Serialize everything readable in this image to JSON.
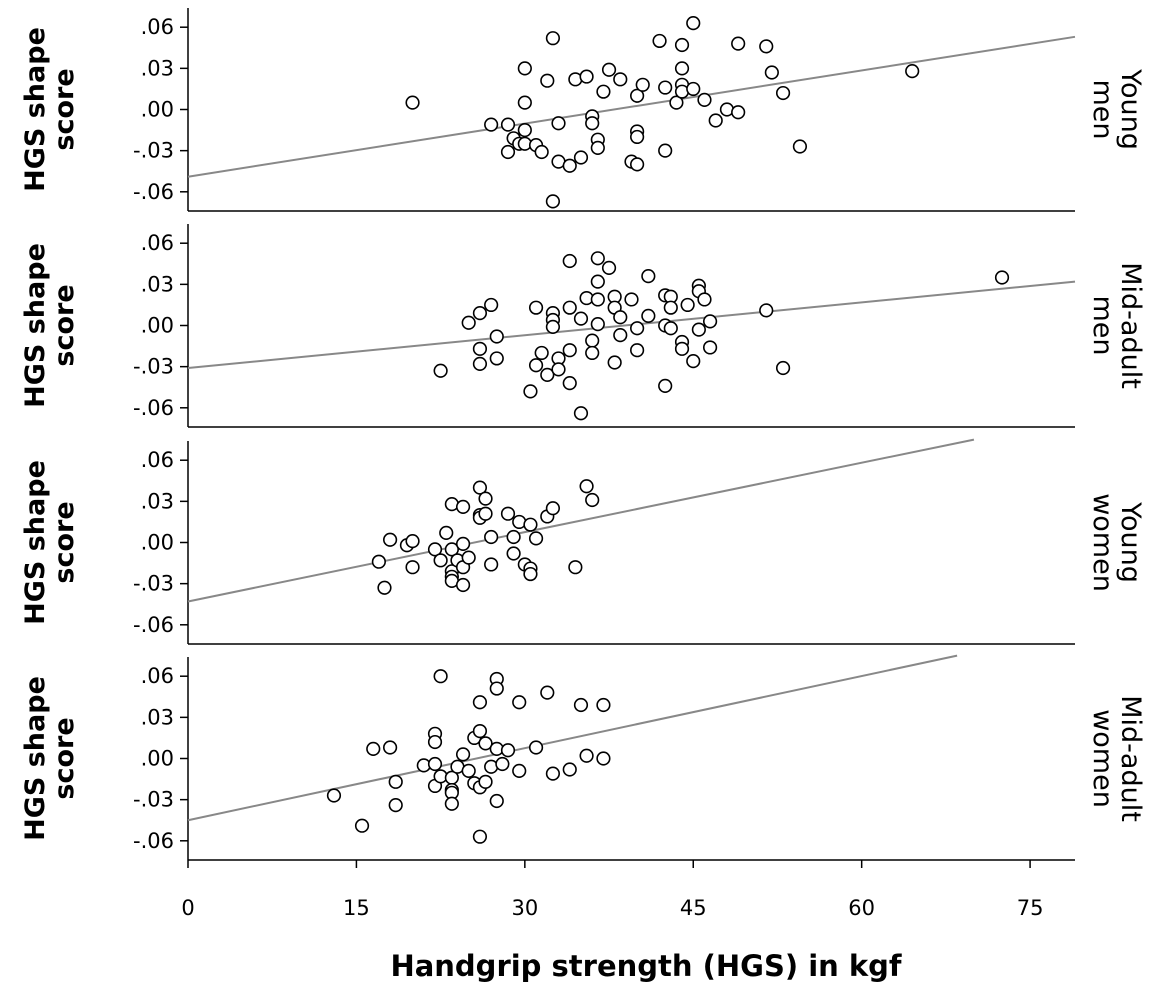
{
  "chart_data": {
    "type": "scatter",
    "xlabel": "Handgrip strength (HGS) in kgf",
    "xlim": [
      0,
      79
    ],
    "xticks": [
      0,
      15,
      30,
      45,
      60,
      75
    ],
    "xtick_labels": [
      "0",
      "15",
      "30",
      "45",
      "60",
      "75"
    ],
    "ylim": [
      -0.074,
      0.074
    ],
    "yticks": [
      0.06,
      0.03,
      0.0,
      -0.03,
      -0.06
    ],
    "ytick_labels": [
      ".06",
      ".03",
      ".00",
      "-.03",
      "-.06"
    ],
    "grid": false,
    "marker": "open-circle",
    "colors": {
      "line": "#888888",
      "marker_edge": "#000000",
      "marker_fill": "#ffffff",
      "axis": "#000000"
    },
    "panels": [
      {
        "ylabel": [
          "HGS shape",
          "score"
        ],
        "facet_label": [
          "Young",
          "men"
        ],
        "fit_line": {
          "x": [
            0,
            79
          ],
          "y": [
            -0.049,
            0.053
          ]
        },
        "points": [
          [
            20,
            0.005
          ],
          [
            27,
            -0.011
          ],
          [
            28.5,
            -0.011
          ],
          [
            28.5,
            -0.031
          ],
          [
            29,
            -0.021
          ],
          [
            29.5,
            -0.025
          ],
          [
            30,
            -0.025
          ],
          [
            30,
            -0.015
          ],
          [
            30,
            0.005
          ],
          [
            30,
            0.03
          ],
          [
            31,
            -0.026
          ],
          [
            31.5,
            -0.031
          ],
          [
            32,
            0.021
          ],
          [
            32.5,
            0.052
          ],
          [
            32.5,
            -0.067
          ],
          [
            33,
            -0.01
          ],
          [
            33,
            -0.038
          ],
          [
            34,
            -0.041
          ],
          [
            34.5,
            0.022
          ],
          [
            35,
            -0.035
          ],
          [
            35.5,
            0.024
          ],
          [
            36,
            -0.005
          ],
          [
            36,
            -0.01
          ],
          [
            36.5,
            -0.022
          ],
          [
            36.5,
            -0.028
          ],
          [
            37,
            0.013
          ],
          [
            37.5,
            0.029
          ],
          [
            38.5,
            0.022
          ],
          [
            39.5,
            -0.038
          ],
          [
            40,
            0.01
          ],
          [
            40,
            -0.016
          ],
          [
            40,
            -0.02
          ],
          [
            40,
            -0.04
          ],
          [
            40.5,
            0.018
          ],
          [
            42,
            0.05
          ],
          [
            42.5,
            0.016
          ],
          [
            42.5,
            -0.03
          ],
          [
            43.5,
            0.005
          ],
          [
            44,
            0.047
          ],
          [
            44,
            0.03
          ],
          [
            44,
            0.018
          ],
          [
            44,
            0.013
          ],
          [
            45,
            0.063
          ],
          [
            45,
            0.015
          ],
          [
            46,
            0.007
          ],
          [
            47,
            -0.008
          ],
          [
            48,
            0
          ],
          [
            49,
            0.048
          ],
          [
            49,
            -0.002
          ],
          [
            51.5,
            0.046
          ],
          [
            52,
            0.027
          ],
          [
            53,
            0.012
          ],
          [
            54.5,
            -0.027
          ],
          [
            64.5,
            0.028
          ]
        ]
      },
      {
        "ylabel": [
          "HGS shape",
          "score"
        ],
        "facet_label": [
          "Mid-adult",
          "men"
        ],
        "fit_line": {
          "x": [
            0,
            79
          ],
          "y": [
            -0.031,
            0.032
          ]
        },
        "points": [
          [
            22.5,
            -0.033
          ],
          [
            25,
            0.002
          ],
          [
            26,
            0.009
          ],
          [
            26,
            -0.017
          ],
          [
            26,
            -0.028
          ],
          [
            27,
            0.015
          ],
          [
            27.5,
            -0.024
          ],
          [
            27.5,
            -0.008
          ],
          [
            30.5,
            -0.048
          ],
          [
            31,
            0.013
          ],
          [
            31,
            -0.029
          ],
          [
            31.5,
            -0.02
          ],
          [
            32,
            -0.036
          ],
          [
            32.5,
            0.009
          ],
          [
            32.5,
            0.004
          ],
          [
            32.5,
            -0.001
          ],
          [
            33,
            -0.024
          ],
          [
            33,
            -0.032
          ],
          [
            34,
            0.047
          ],
          [
            34,
            0.013
          ],
          [
            34,
            -0.018
          ],
          [
            34,
            -0.042
          ],
          [
            35,
            0.005
          ],
          [
            35,
            -0.064
          ],
          [
            35.5,
            0.02
          ],
          [
            36,
            -0.011
          ],
          [
            36,
            -0.02
          ],
          [
            36.5,
            0.049
          ],
          [
            36.5,
            0.032
          ],
          [
            36.5,
            0.019
          ],
          [
            36.5,
            0.001
          ],
          [
            37.5,
            0.042
          ],
          [
            38,
            0.021
          ],
          [
            38,
            0.013
          ],
          [
            38,
            -0.027
          ],
          [
            38.5,
            0.006
          ],
          [
            38.5,
            -0.007
          ],
          [
            39.5,
            0.019
          ],
          [
            40,
            -0.002
          ],
          [
            40,
            -0.018
          ],
          [
            41,
            0.036
          ],
          [
            41,
            0.007
          ],
          [
            42.5,
            0.022
          ],
          [
            42.5,
            0
          ],
          [
            42.5,
            -0.044
          ],
          [
            43,
            0.021
          ],
          [
            43,
            0.013
          ],
          [
            43,
            -0.002
          ],
          [
            44,
            -0.012
          ],
          [
            44,
            -0.017
          ],
          [
            44.5,
            0.015
          ],
          [
            45,
            -0.026
          ],
          [
            45.5,
            0.029
          ],
          [
            45.5,
            0.025
          ],
          [
            45.5,
            -0.003
          ],
          [
            46,
            0.019
          ],
          [
            46.5,
            0.003
          ],
          [
            46.5,
            -0.016
          ],
          [
            51.5,
            0.011
          ],
          [
            53,
            -0.031
          ],
          [
            72.5,
            0.035
          ]
        ]
      },
      {
        "ylabel": [
          "HGS shape",
          "score"
        ],
        "facet_label": [
          "Young",
          "women"
        ],
        "fit_line": {
          "x": [
            0,
            70
          ],
          "y": [
            -0.043,
            0.075
          ]
        },
        "points": [
          [
            17,
            -0.014
          ],
          [
            17.5,
            -0.033
          ],
          [
            18,
            0.002
          ],
          [
            19.5,
            -0.002
          ],
          [
            20,
            0.001
          ],
          [
            20,
            -0.018
          ],
          [
            22,
            -0.005
          ],
          [
            22.5,
            -0.013
          ],
          [
            23,
            0.007
          ],
          [
            23.5,
            0.028
          ],
          [
            23.5,
            -0.005
          ],
          [
            23.5,
            -0.021
          ],
          [
            23.5,
            -0.025
          ],
          [
            23.5,
            -0.028
          ],
          [
            24,
            -0.013
          ],
          [
            24.5,
            0.026
          ],
          [
            24.5,
            -0.001
          ],
          [
            24.5,
            -0.018
          ],
          [
            24.5,
            -0.031
          ],
          [
            25,
            -0.011
          ],
          [
            26,
            0.04
          ],
          [
            26,
            0.02
          ],
          [
            26,
            0.018
          ],
          [
            26.5,
            0.032
          ],
          [
            26.5,
            0.021
          ],
          [
            27,
            0.004
          ],
          [
            27,
            -0.016
          ],
          [
            28.5,
            0.021
          ],
          [
            29,
            0.004
          ],
          [
            29,
            -0.008
          ],
          [
            29.5,
            0.015
          ],
          [
            30,
            -0.016
          ],
          [
            30.5,
            0.013
          ],
          [
            30.5,
            -0.019
          ],
          [
            30.5,
            -0.023
          ],
          [
            31,
            0.003
          ],
          [
            32,
            0.019
          ],
          [
            32.5,
            0.025
          ],
          [
            34.5,
            -0.018
          ],
          [
            35.5,
            0.041
          ],
          [
            36,
            0.031
          ]
        ]
      },
      {
        "ylabel": [
          "HGS shape",
          "score"
        ],
        "facet_label": [
          "Mid-adult",
          "women"
        ],
        "fit_line": {
          "x": [
            0,
            68.5
          ],
          "y": [
            -0.045,
            0.075
          ]
        },
        "points": [
          [
            13,
            -0.027
          ],
          [
            15.5,
            -0.049
          ],
          [
            16.5,
            0.007
          ],
          [
            18,
            0.008
          ],
          [
            18.5,
            -0.017
          ],
          [
            18.5,
            -0.034
          ],
          [
            21,
            -0.005
          ],
          [
            22,
            0.018
          ],
          [
            22,
            0.012
          ],
          [
            22,
            -0.004
          ],
          [
            22,
            -0.02
          ],
          [
            22.5,
            0.06
          ],
          [
            22.5,
            -0.013
          ],
          [
            23.5,
            -0.014
          ],
          [
            23.5,
            -0.023
          ],
          [
            23.5,
            -0.025
          ],
          [
            23.5,
            -0.033
          ],
          [
            24,
            -0.006
          ],
          [
            24.5,
            0.003
          ],
          [
            25,
            -0.009
          ],
          [
            25.5,
            0.015
          ],
          [
            25.5,
            -0.018
          ],
          [
            26,
            0.041
          ],
          [
            26,
            0.02
          ],
          [
            26,
            -0.021
          ],
          [
            26,
            -0.057
          ],
          [
            26.5,
            0.011
          ],
          [
            26.5,
            -0.017
          ],
          [
            27,
            -0.006
          ],
          [
            27.5,
            0.058
          ],
          [
            27.5,
            0.051
          ],
          [
            27.5,
            0.007
          ],
          [
            27.5,
            -0.031
          ],
          [
            28,
            -0.004
          ],
          [
            28.5,
            0.006
          ],
          [
            29.5,
            0.041
          ],
          [
            29.5,
            -0.009
          ],
          [
            31,
            0.008
          ],
          [
            32,
            0.048
          ],
          [
            32.5,
            -0.011
          ],
          [
            34,
            -0.008
          ],
          [
            35,
            0.039
          ],
          [
            35.5,
            0.002
          ],
          [
            37,
            0.039
          ],
          [
            37,
            0
          ]
        ]
      }
    ]
  }
}
